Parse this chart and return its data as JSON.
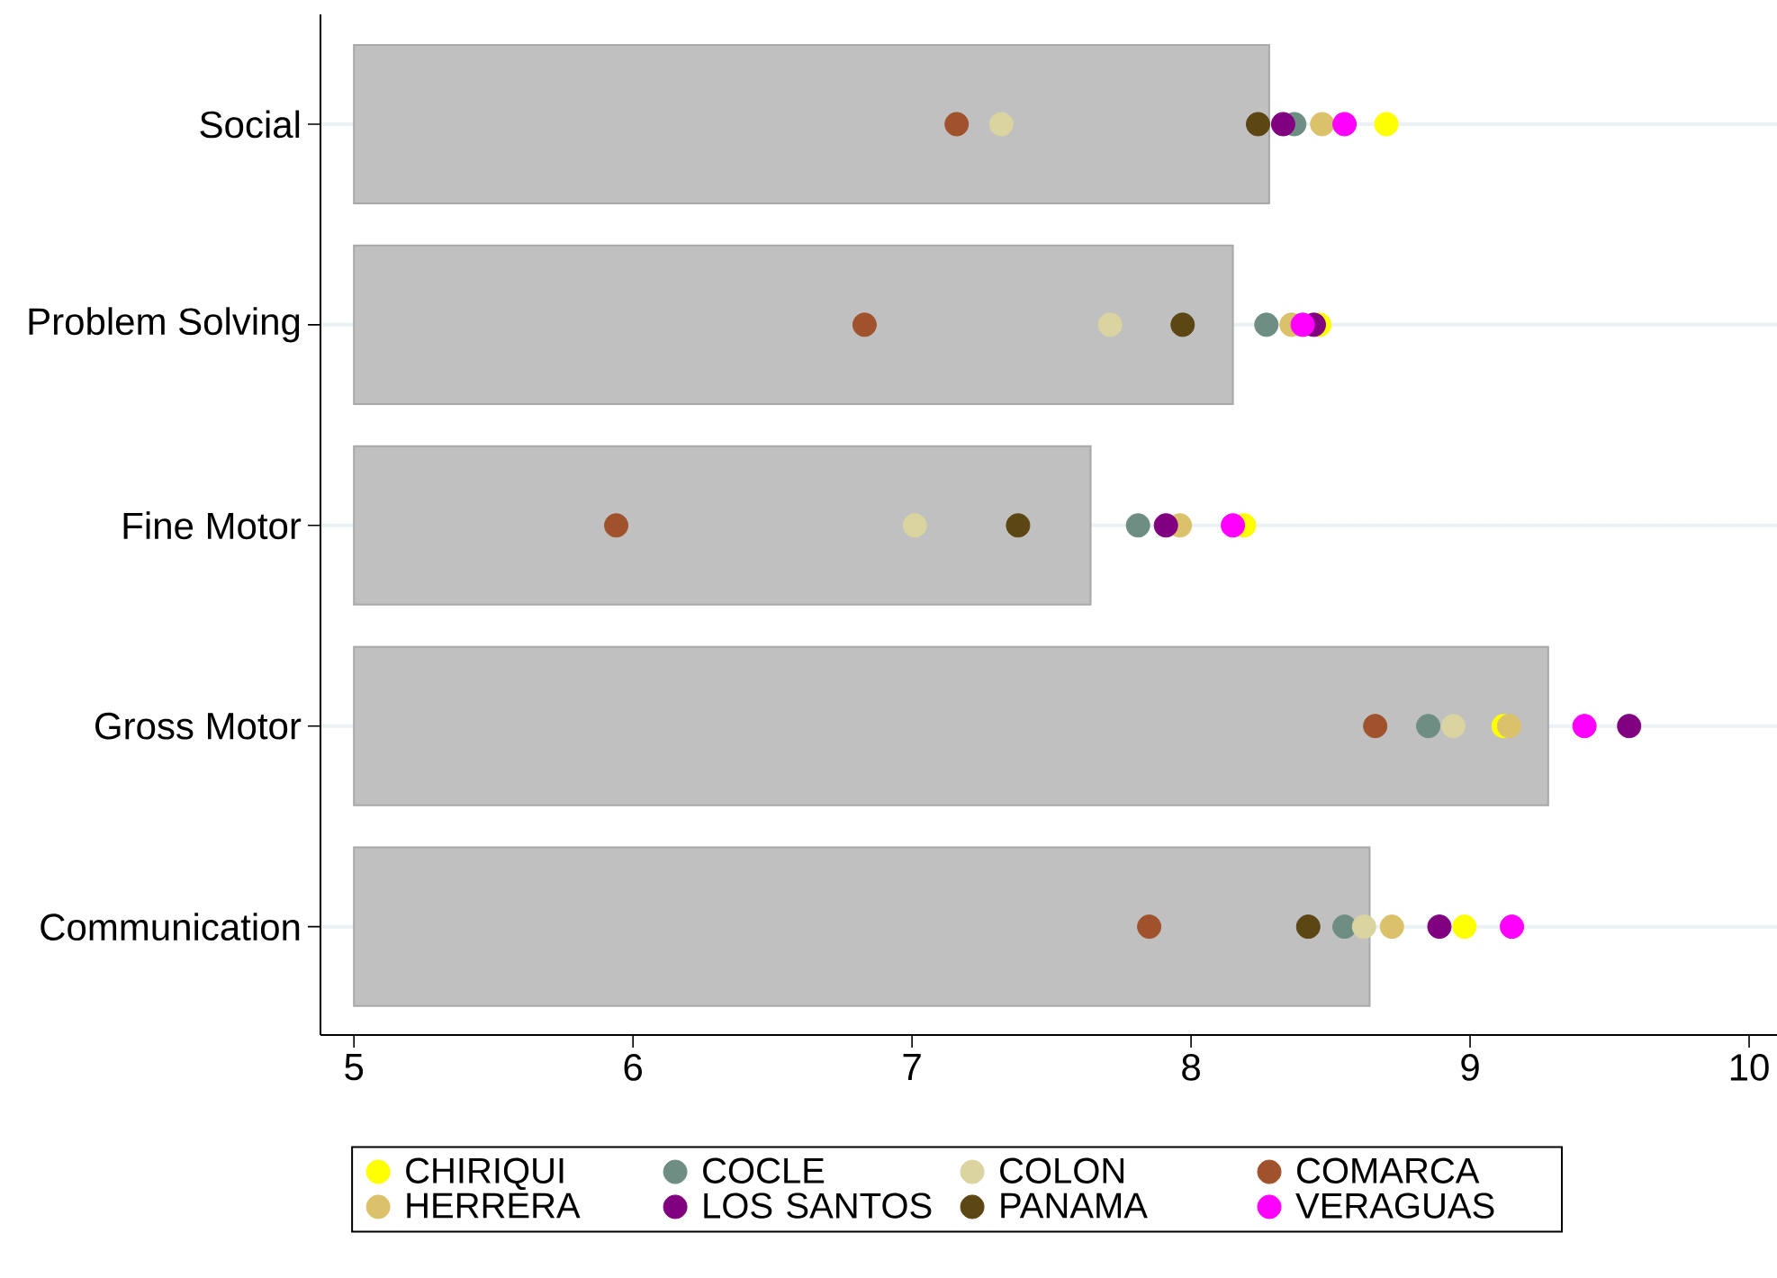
{
  "chart_data": {
    "type": "bar",
    "orientation": "horizontal",
    "categories": [
      "Social",
      "Problem Solving",
      "Fine Motor",
      "Gross Motor",
      "Communication"
    ],
    "xlim": [
      4.88,
      10.1
    ],
    "xticks": [
      5,
      6,
      7,
      8,
      9,
      10
    ],
    "grid": "y",
    "legend": "bottom",
    "marker": "circle",
    "series": [
      {
        "color": "#c0c0c0",
        "base": [
          5,
          5,
          5,
          5,
          5
        ],
        "values": [
          3.28,
          3.15,
          2.64,
          4.28,
          3.64
        ]
      },
      {
        "type": "scatter",
        "name": "CHIRIQUI",
        "color": "#ffff00",
        "values": [
          8.7,
          8.46,
          8.19,
          9.12,
          8.98
        ]
      },
      {
        "type": "scatter",
        "name": "COCLE",
        "color": "#6e8e84",
        "values": [
          8.37,
          8.27,
          7.81,
          8.85,
          8.55
        ]
      },
      {
        "type": "scatter",
        "name": "COLON",
        "color": "#d9d4a0",
        "values": [
          7.32,
          7.71,
          7.01,
          8.94,
          8.62
        ]
      },
      {
        "type": "scatter",
        "name": "COMARCA",
        "color": "#a0522d",
        "values": [
          7.16,
          6.83,
          5.94,
          8.66,
          7.85
        ]
      },
      {
        "type": "scatter",
        "name": "HERRERA",
        "color": "#dbc169",
        "values": [
          8.47,
          8.36,
          7.96,
          9.14,
          8.72
        ]
      },
      {
        "type": "scatter",
        "name": "LOS SANTOS",
        "color": "#800080",
        "values": [
          8.33,
          8.44,
          7.91,
          9.57,
          8.89
        ]
      },
      {
        "type": "scatter",
        "name": "PANAMA",
        "color": "#5c4613",
        "values": [
          8.24,
          7.97,
          7.38,
          null,
          8.42
        ]
      },
      {
        "type": "scatter",
        "name": "VERAGUAS",
        "color": "#ff00ff",
        "values": [
          8.55,
          8.4,
          8.15,
          9.41,
          9.15
        ]
      }
    ]
  }
}
